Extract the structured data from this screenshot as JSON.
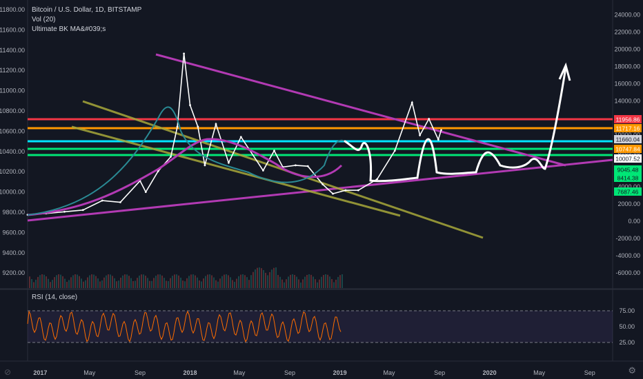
{
  "legend": {
    "title": "Bitcoin / U.S. Dollar, 1D, BITSTAMP",
    "vol": "Vol (20)",
    "ma": "Ultimate BK MA&#039;s"
  },
  "rsi_label": "RSI (14, close)",
  "left_axis_ticks": [
    "11800.00",
    "11600.00",
    "11400.00",
    "11200.00",
    "11000.00",
    "10800.00",
    "10600.00",
    "10400.00",
    "10200.00",
    "10000.00",
    "9800.00",
    "9600.00",
    "9400.00",
    "9200.00"
  ],
  "right_axis_ticks": [
    "24000.00",
    "22000.00",
    "20000.00",
    "18000.00",
    "16000.00",
    "14000.00",
    "12000.00",
    "10000.00",
    "8000.00",
    "6000.00",
    "4000.00",
    "2000.00",
    "0.00",
    "-2000.00",
    "-4000.00",
    "-6000.00"
  ],
  "rsi_ticks": [
    "75.00",
    "50.00",
    "25.00"
  ],
  "x_ticks": [
    "2017",
    "May",
    "Sep",
    "2018",
    "May",
    "Sep",
    "2019",
    "May",
    "Sep",
    "2020",
    "May",
    "Sep"
  ],
  "price_badges": [
    {
      "text": "11956.86",
      "color": "#f23645"
    },
    {
      "text": "11717.16",
      "color": "#ff9800"
    },
    {
      "text": "11660.04",
      "color": "#d1d4dc"
    },
    {
      "text": "10747.84",
      "color": "#ff9800"
    },
    {
      "text": "10007.52",
      "color": "#131722"
    },
    {
      "text": "9045.48",
      "color": "#00e676"
    },
    {
      "text": "8414.38",
      "color": "#00e676"
    },
    {
      "text": "7687.46",
      "color": "#00e676"
    }
  ],
  "horizontal_levels": [
    {
      "color": "#f23645"
    },
    {
      "color": "#ff9800"
    },
    {
      "color": "#00e5ff"
    },
    {
      "color": "#00e676"
    },
    {
      "color": "#00e676"
    }
  ],
  "chart_data": {
    "type": "line",
    "title": "Bitcoin / U.S. Dollar, 1D, BITSTAMP",
    "xlabel": "",
    "ylabel": "",
    "x_range": [
      "2016-12",
      "2020-10"
    ],
    "y_range": [
      -8000,
      25000
    ],
    "series": [
      {
        "name": "",
        "values": [
          [
            "2016-12-01",
            750
          ],
          [
            "2017-01-15",
            900
          ],
          [
            "2017-03-01",
            1100
          ],
          [
            "2017-04-15",
            1300
          ],
          [
            "2017-06-01",
            2400
          ],
          [
            "2017-07-15",
            2200
          ],
          [
            "2017-09-01",
            4700
          ],
          [
            "2017-09-15",
            3400
          ],
          [
            "2017-10-15",
            5800
          ],
          [
            "2017-11-15",
            7500
          ],
          [
            "2017-12-01",
            11000
          ],
          [
            "2017-12-17",
            19500
          ],
          [
            "2018-01-01",
            13500
          ],
          [
            "2018-01-20",
            11000
          ],
          [
            "2018-02-06",
            6500
          ],
          [
            "2018-03-05",
            11300
          ],
          [
            "2018-04-05",
            6800
          ],
          [
            "2018-05-05",
            9800
          ],
          [
            "2018-06-28",
            5900
          ],
          [
            "2018-07-25",
            8200
          ],
          [
            "2018-08-15",
            6300
          ],
          [
            "2018-09-15",
            6500
          ],
          [
            "2018-10-15",
            6400
          ],
          [
            "2018-11-20",
            4300
          ],
          [
            "2018-12-15",
            3200
          ],
          [
            "2019-01-15",
            3600
          ],
          [
            "2019-02-15",
            3600
          ],
          [
            "2019-04-02",
            4900
          ],
          [
            "2019-05-15",
            8200
          ],
          [
            "2019-06-26",
            13800
          ],
          [
            "2019-07-15",
            10000
          ],
          [
            "2019-08-06",
            11900
          ],
          [
            "2019-08-29",
            9500
          ],
          [
            "2019-09-05",
            10600
          ]
        ]
      }
    ],
    "horizontal_levels": [
      11956.86,
      11717.16,
      11660.04,
      10747.84,
      10007.52
    ],
    "rsi_levels": [
      70,
      30
    ]
  }
}
